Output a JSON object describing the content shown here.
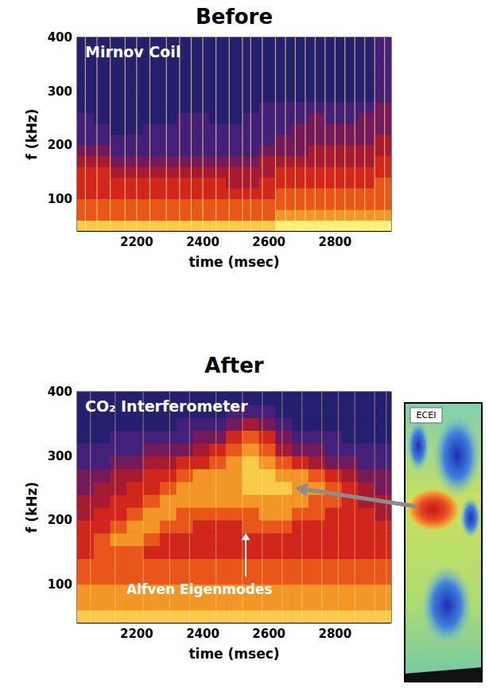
{
  "chart_data": [
    {
      "type": "heatmap",
      "title": "Before",
      "label": "Mirnov Coil",
      "xlabel": "time (msec)",
      "ylabel": "f (kHz)",
      "xlim": [
        2020,
        2970
      ],
      "xticks": [
        2200,
        2400,
        2600,
        2800
      ],
      "ylim": [
        40,
        400
      ],
      "yticks": [
        100,
        200,
        300,
        400
      ],
      "grid": false,
      "color_range": [
        0,
        9
      ],
      "time_bins": [
        2020,
        2070,
        2120,
        2170,
        2220,
        2270,
        2320,
        2370,
        2420,
        2470,
        2520,
        2570,
        2620,
        2670,
        2720,
        2770,
        2820,
        2870,
        2920,
        2970
      ],
      "freq_bins": [
        40,
        60,
        80,
        100,
        120,
        140,
        160,
        180,
        200,
        220,
        240,
        260,
        280,
        300,
        320,
        340,
        360,
        380,
        400
      ],
      "cells": [
        [
          8,
          8,
          8,
          8,
          8,
          8,
          8,
          8,
          8,
          8,
          8,
          8,
          9,
          9,
          9,
          9,
          9,
          9,
          9
        ],
        [
          6,
          6,
          6,
          6,
          6,
          6,
          6,
          6,
          6,
          6,
          6,
          6,
          7,
          7,
          7,
          7,
          7,
          7,
          7
        ],
        [
          6,
          6,
          6,
          6,
          6,
          6,
          6,
          6,
          6,
          6,
          6,
          6,
          6,
          6,
          6,
          6,
          6,
          6,
          6
        ],
        [
          5,
          5,
          5,
          5,
          5,
          5,
          5,
          5,
          5,
          5,
          5,
          5,
          6,
          6,
          6,
          6,
          6,
          6,
          6
        ],
        [
          5,
          5,
          5,
          5,
          5,
          5,
          5,
          5,
          5,
          4,
          4,
          5,
          5,
          5,
          5,
          5,
          5,
          5,
          6
        ],
        [
          5,
          5,
          4,
          4,
          4,
          4,
          4,
          4,
          4,
          4,
          4,
          4,
          5,
          5,
          5,
          5,
          5,
          5,
          5
        ],
        [
          4,
          4,
          3,
          3,
          3,
          3,
          3,
          3,
          3,
          3,
          3,
          4,
          4,
          4,
          4,
          4,
          4,
          4,
          5
        ],
        [
          3,
          3,
          2,
          2,
          2,
          2,
          2,
          2,
          2,
          2,
          2,
          3,
          3,
          3,
          4,
          4,
          4,
          4,
          4
        ],
        [
          2,
          2,
          2,
          2,
          2,
          2,
          2,
          2,
          2,
          2,
          2,
          2,
          3,
          3,
          3,
          3,
          3,
          3,
          4
        ],
        [
          2,
          2,
          1,
          1,
          2,
          2,
          2,
          2,
          2,
          2,
          2,
          2,
          2,
          3,
          3,
          3,
          3,
          3,
          3
        ],
        [
          2,
          1,
          1,
          1,
          1,
          1,
          2,
          2,
          1,
          1,
          2,
          2,
          2,
          2,
          3,
          2,
          2,
          3,
          3
        ],
        [
          1,
          1,
          1,
          1,
          1,
          1,
          1,
          1,
          1,
          1,
          1,
          2,
          2,
          2,
          2,
          2,
          2,
          2,
          3
        ],
        [
          1,
          1,
          1,
          1,
          1,
          1,
          1,
          1,
          1,
          1,
          1,
          1,
          1,
          1,
          1,
          1,
          1,
          1,
          2
        ],
        [
          1,
          1,
          1,
          1,
          1,
          1,
          1,
          1,
          1,
          1,
          1,
          1,
          1,
          1,
          1,
          1,
          1,
          1,
          2
        ],
        [
          1,
          1,
          1,
          1,
          1,
          1,
          1,
          1,
          1,
          1,
          1,
          1,
          1,
          1,
          1,
          1,
          1,
          1,
          2
        ],
        [
          1,
          1,
          1,
          1,
          1,
          1,
          1,
          1,
          1,
          1,
          1,
          1,
          1,
          1,
          1,
          1,
          1,
          1,
          2
        ],
        [
          1,
          1,
          1,
          1,
          1,
          1,
          1,
          1,
          1,
          1,
          1,
          1,
          1,
          1,
          1,
          1,
          1,
          1,
          2
        ],
        [
          1,
          1,
          1,
          1,
          1,
          1,
          1,
          1,
          1,
          1,
          1,
          1,
          1,
          1,
          1,
          1,
          1,
          1,
          2
        ]
      ],
      "events": [
        2045,
        2080,
        2120,
        2165,
        2200,
        2240,
        2290,
        2330,
        2365,
        2400,
        2440,
        2480,
        2520,
        2545,
        2580,
        2620,
        2650,
        2680,
        2710,
        2740,
        2770,
        2800,
        2830,
        2860,
        2890,
        2920,
        2950
      ]
    },
    {
      "type": "heatmap",
      "title": "After",
      "label": "CO₂ Interferometer",
      "xlabel": "time (msec)",
      "ylabel": "f (kHz)",
      "xlim": [
        2020,
        2970
      ],
      "xticks": [
        2200,
        2400,
        2600,
        2800
      ],
      "ylim": [
        40,
        400
      ],
      "yticks": [
        100,
        200,
        300,
        400
      ],
      "grid": false,
      "color_range": [
        0,
        9
      ],
      "time_bins": [
        2020,
        2070,
        2120,
        2170,
        2220,
        2270,
        2320,
        2370,
        2420,
        2470,
        2520,
        2570,
        2620,
        2670,
        2720,
        2770,
        2820,
        2870,
        2920,
        2970
      ],
      "freq_bins": [
        40,
        60,
        80,
        100,
        120,
        140,
        160,
        180,
        200,
        220,
        240,
        260,
        280,
        300,
        320,
        340,
        360,
        380,
        400
      ],
      "cells": [
        [
          8,
          8,
          8,
          8,
          8,
          8,
          8,
          8,
          8,
          8,
          8,
          8,
          8,
          8,
          8,
          8,
          8,
          8,
          8
        ],
        [
          7,
          7,
          7,
          7,
          7,
          7,
          7,
          7,
          7,
          7,
          7,
          7,
          7,
          7,
          7,
          7,
          7,
          7,
          7
        ],
        [
          7,
          7,
          7,
          7,
          7,
          7,
          7,
          7,
          7,
          7,
          7,
          7,
          7,
          7,
          7,
          7,
          7,
          7,
          7
        ],
        [
          6,
          6,
          6,
          6,
          6,
          6,
          6,
          6,
          6,
          6,
          6,
          6,
          6,
          6,
          6,
          6,
          6,
          6,
          6
        ],
        [
          6,
          6,
          6,
          6,
          6,
          6,
          6,
          6,
          6,
          6,
          6,
          6,
          6,
          6,
          6,
          6,
          6,
          6,
          6
        ],
        [
          5,
          6,
          6,
          6,
          5,
          5,
          5,
          5,
          5,
          5,
          5,
          5,
          5,
          5,
          5,
          5,
          5,
          5,
          5
        ],
        [
          5,
          6,
          7,
          7,
          6,
          5,
          5,
          5,
          5,
          5,
          5,
          5,
          5,
          5,
          5,
          5,
          5,
          5,
          5
        ],
        [
          5,
          5,
          6,
          7,
          7,
          6,
          6,
          5,
          5,
          5,
          6,
          6,
          6,
          5,
          5,
          5,
          5,
          5,
          5
        ],
        [
          4,
          5,
          5,
          6,
          7,
          7,
          6,
          6,
          6,
          6,
          6,
          7,
          7,
          6,
          6,
          5,
          5,
          5,
          4
        ],
        [
          4,
          4,
          5,
          5,
          6,
          7,
          7,
          7,
          7,
          7,
          7,
          7,
          7,
          7,
          6,
          6,
          5,
          4,
          4
        ],
        [
          3,
          4,
          4,
          5,
          5,
          6,
          7,
          7,
          7,
          7,
          8,
          8,
          8,
          7,
          7,
          6,
          5,
          4,
          3
        ],
        [
          3,
          3,
          4,
          4,
          5,
          5,
          6,
          7,
          7,
          7,
          8,
          8,
          7,
          7,
          6,
          5,
          4,
          3,
          3
        ],
        [
          2,
          2,
          3,
          3,
          4,
          4,
          5,
          5,
          6,
          7,
          8,
          7,
          6,
          5,
          4,
          3,
          3,
          2,
          2
        ],
        [
          2,
          2,
          2,
          2,
          3,
          3,
          3,
          4,
          5,
          6,
          7,
          6,
          4,
          3,
          3,
          2,
          2,
          2,
          2
        ],
        [
          1,
          1,
          2,
          2,
          2,
          2,
          2,
          3,
          3,
          5,
          6,
          5,
          3,
          2,
          2,
          2,
          1,
          1,
          1
        ],
        [
          1,
          1,
          1,
          1,
          1,
          1,
          2,
          2,
          2,
          3,
          4,
          3,
          2,
          1,
          1,
          1,
          1,
          1,
          1
        ],
        [
          1,
          1,
          1,
          1,
          1,
          1,
          1,
          1,
          1,
          2,
          2,
          2,
          1,
          1,
          1,
          1,
          1,
          1,
          1
        ],
        [
          1,
          1,
          1,
          1,
          1,
          1,
          1,
          1,
          1,
          1,
          1,
          1,
          1,
          1,
          1,
          1,
          1,
          1,
          1
        ]
      ],
      "events": [
        2060,
        2135,
        2220,
        2300,
        2360,
        2440,
        2520,
        2580,
        2640,
        2700,
        2760,
        2810,
        2860,
        2920,
        2955
      ],
      "annotations": [
        {
          "text": "Alfven Eigenmodes",
          "x": 2390,
          "y": 92,
          "arrow_from": [
            2530,
            112
          ],
          "arrow_to": [
            2530,
            180
          ]
        }
      ],
      "inset": {
        "label": "ECEI",
        "arrow_to": [
          2680,
          250
        ]
      }
    }
  ]
}
